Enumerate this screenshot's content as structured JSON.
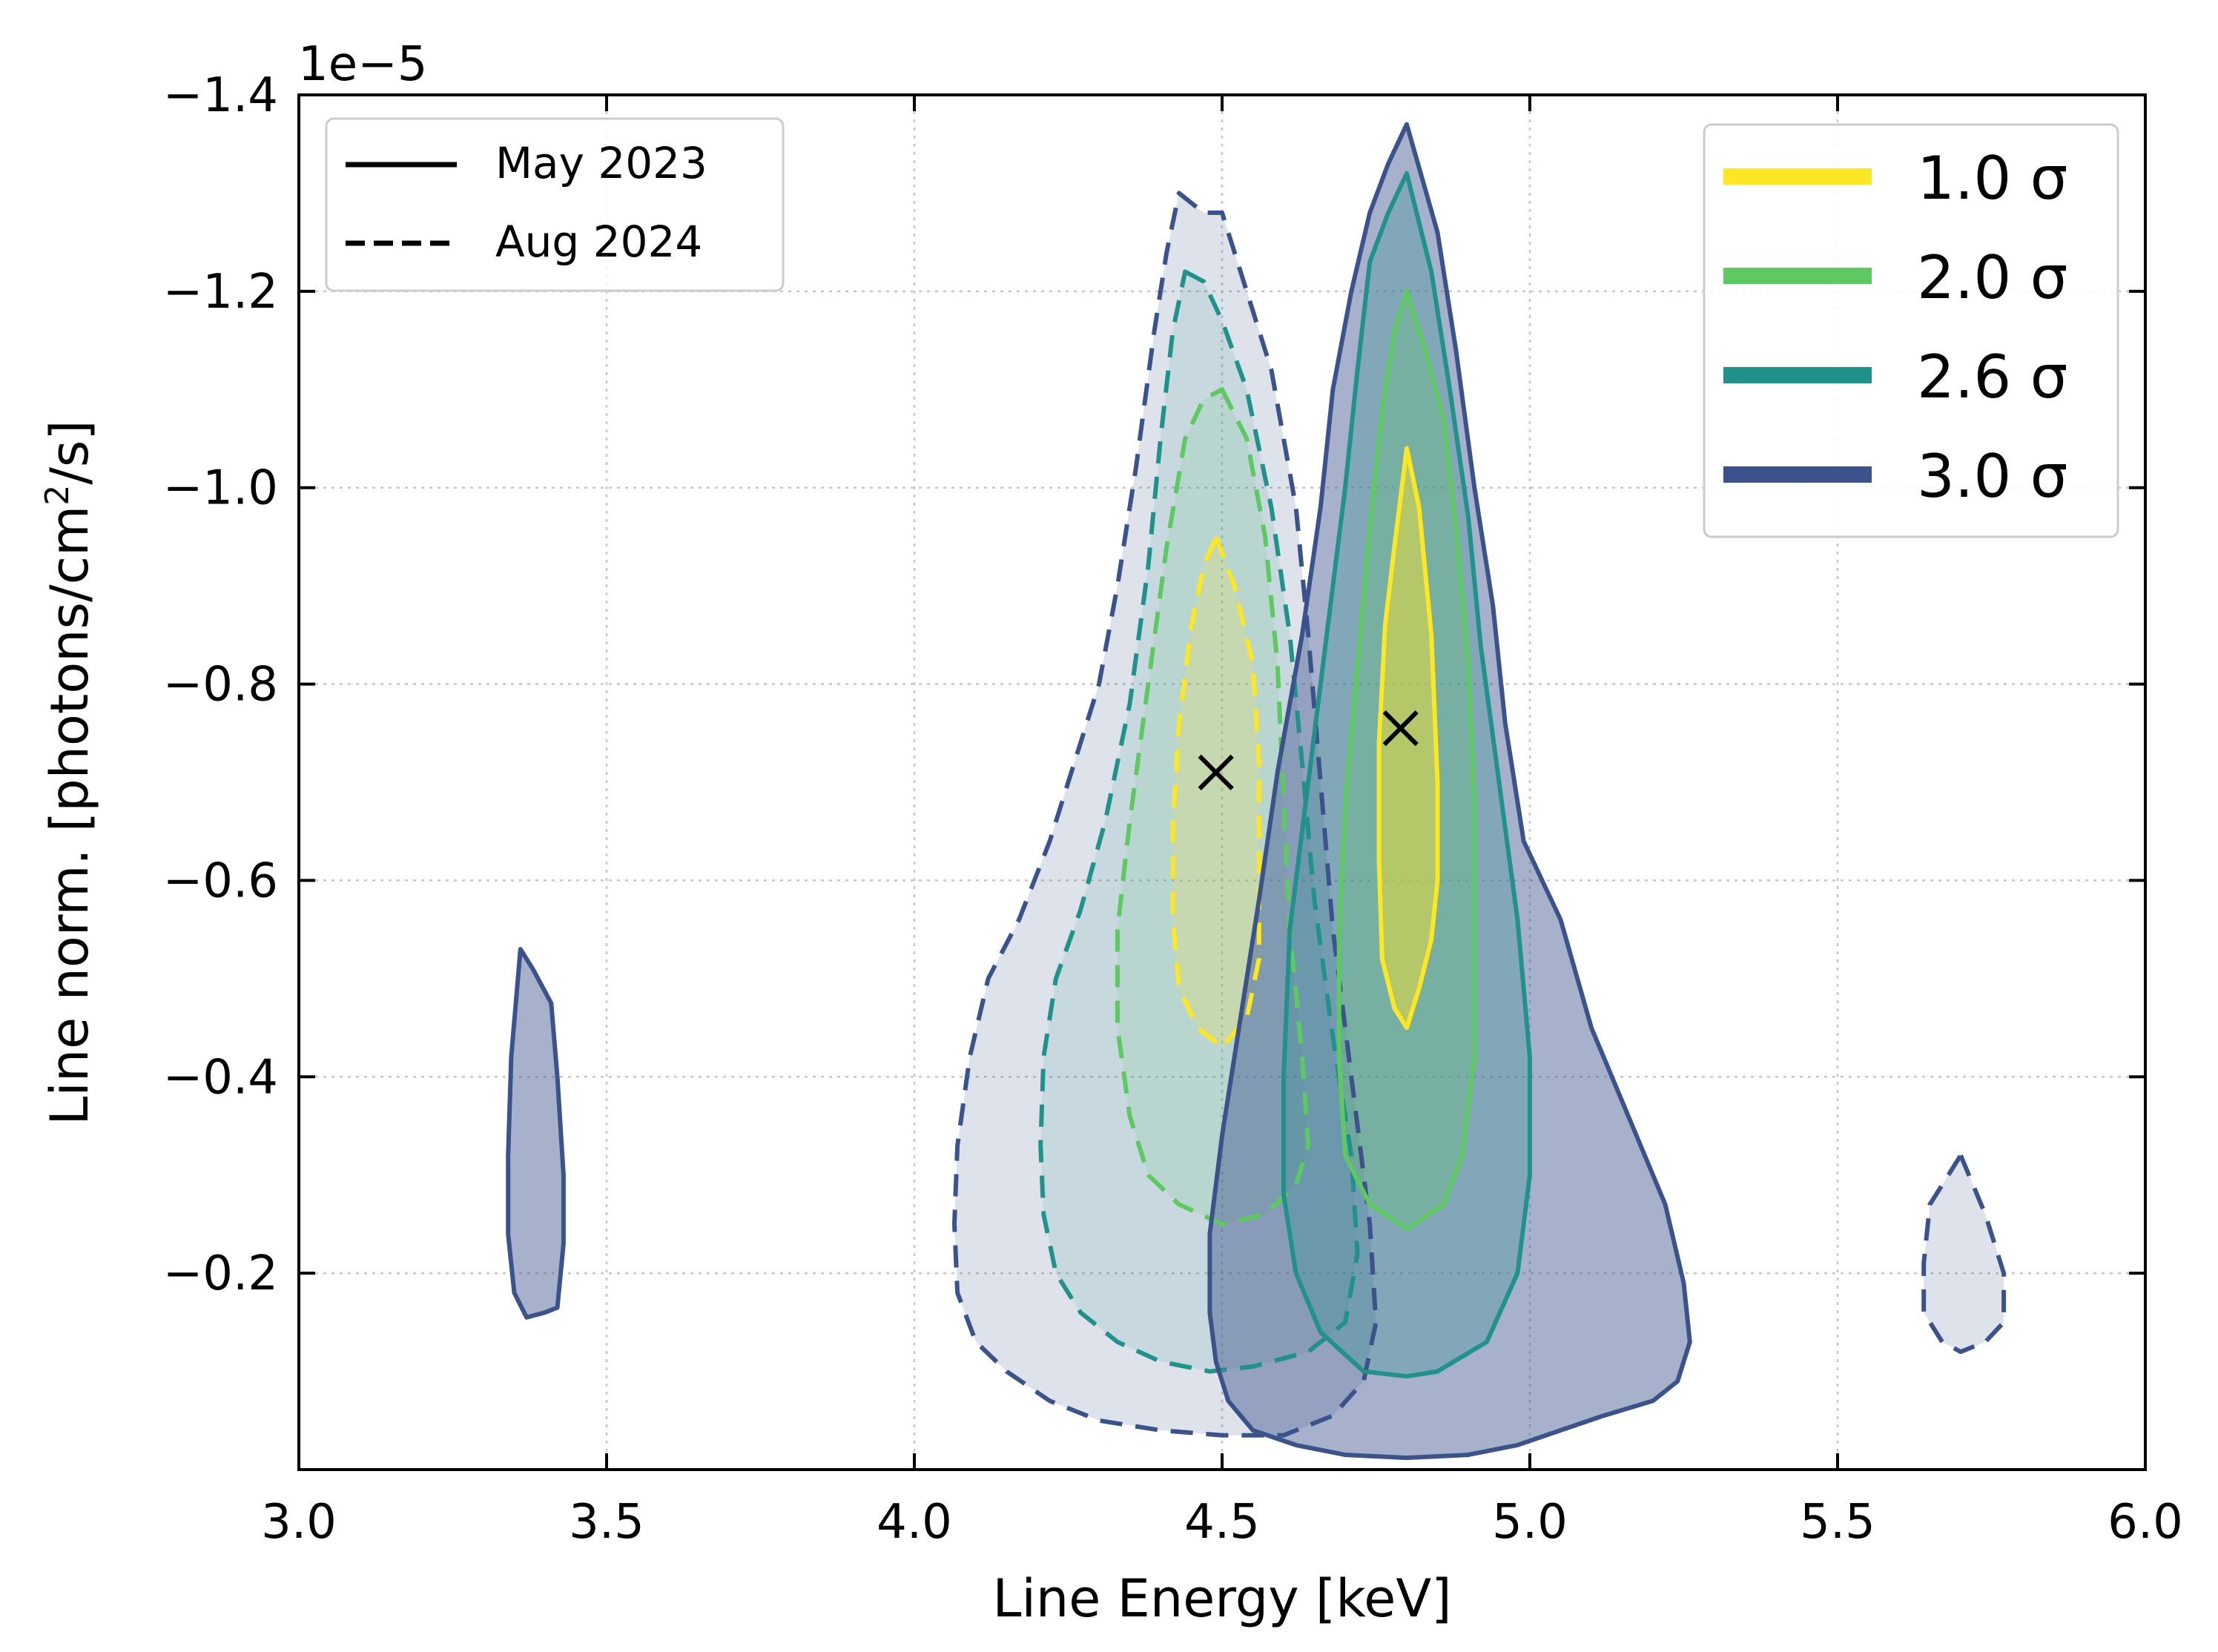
{
  "chart_data": {
    "type": "contour",
    "xlabel": "Line Energy [keV]",
    "ylabel_main": "Line norm. [photons/cm",
    "ylabel_sup": "2",
    "ylabel_end": "/s]",
    "offset_label": "1e−5",
    "xlim": [
      3.0,
      6.0
    ],
    "ylim": [
      0.0,
      -1.4
    ],
    "y_scale": 1e-05,
    "grid": true,
    "x_ticks": [
      3.0,
      3.5,
      4.0,
      4.5,
      5.0,
      5.5,
      6.0
    ],
    "x_tick_labels": [
      "3.0",
      "3.5",
      "4.0",
      "4.5",
      "5.0",
      "5.5",
      "6.0"
    ],
    "y_ticks": [
      -1.4,
      -1.2,
      -1.0,
      -0.8,
      -0.6,
      -0.4,
      -0.2
    ],
    "y_tick_labels": [
      "−1.4",
      "−1.2",
      "−1.0",
      "−0.8",
      "−0.6",
      "−0.4",
      "−0.2"
    ],
    "legend_epochs": [
      {
        "label": "May 2023",
        "style": "solid"
      },
      {
        "label": "Aug 2024",
        "style": "dashed"
      }
    ],
    "legend_levels": [
      {
        "label": "1.0 σ",
        "color": "#fde725"
      },
      {
        "label": "2.0 σ",
        "color": "#5ec962"
      },
      {
        "label": "2.6 σ",
        "color": "#21918c"
      },
      {
        "label": "3.0 σ",
        "color": "#3b528b"
      }
    ],
    "best_fit": [
      {
        "epoch": "Aug 2024",
        "x": 4.49,
        "y": -0.71
      },
      {
        "epoch": "May 2023",
        "x": 4.79,
        "y": -0.755
      }
    ],
    "contours": [
      {
        "epoch": "Aug 2024",
        "level": "3.0 σ",
        "color": "#3b528b",
        "dashed": true,
        "alpha": 0.17,
        "points": [
          [
            4.43,
            -1.3
          ],
          [
            4.47,
            -1.28
          ],
          [
            4.5,
            -1.28
          ],
          [
            4.53,
            -1.22
          ],
          [
            4.58,
            -1.12
          ],
          [
            4.62,
            -0.98
          ],
          [
            4.64,
            -0.85
          ],
          [
            4.66,
            -0.7
          ],
          [
            4.68,
            -0.55
          ],
          [
            4.71,
            -0.4
          ],
          [
            4.74,
            -0.25
          ],
          [
            4.75,
            -0.15
          ],
          [
            4.73,
            -0.09
          ],
          [
            4.68,
            -0.055
          ],
          [
            4.6,
            -0.035
          ],
          [
            4.5,
            -0.035
          ],
          [
            4.4,
            -0.04
          ],
          [
            4.3,
            -0.05
          ],
          [
            4.22,
            -0.07
          ],
          [
            4.15,
            -0.1
          ],
          [
            4.1,
            -0.13
          ],
          [
            4.07,
            -0.18
          ],
          [
            4.065,
            -0.25
          ],
          [
            4.07,
            -0.33
          ],
          [
            4.09,
            -0.42
          ],
          [
            4.12,
            -0.5
          ],
          [
            4.17,
            -0.56
          ],
          [
            4.22,
            -0.64
          ],
          [
            4.26,
            -0.72
          ],
          [
            4.3,
            -0.8
          ],
          [
            4.33,
            -0.9
          ],
          [
            4.36,
            -1.02
          ],
          [
            4.39,
            -1.16
          ],
          [
            4.41,
            -1.24
          ]
        ]
      },
      {
        "epoch": "Aug 2024",
        "level": "3.0 σ",
        "color": "#3b528b",
        "dashed": true,
        "alpha": 0.17,
        "points": [
          [
            5.7,
            -0.32
          ],
          [
            5.74,
            -0.26
          ],
          [
            5.77,
            -0.2
          ],
          [
            5.77,
            -0.15
          ],
          [
            5.74,
            -0.13
          ],
          [
            5.7,
            -0.12
          ],
          [
            5.67,
            -0.13
          ],
          [
            5.64,
            -0.16
          ],
          [
            5.64,
            -0.21
          ],
          [
            5.65,
            -0.27
          ]
        ]
      },
      {
        "epoch": "Aug 2024",
        "level": "2.6 σ",
        "color": "#21918c",
        "dashed": true,
        "alpha": 0.12,
        "points": [
          [
            4.44,
            -1.22
          ],
          [
            4.47,
            -1.21
          ],
          [
            4.5,
            -1.17
          ],
          [
            4.54,
            -1.1
          ],
          [
            4.58,
            -0.98
          ],
          [
            4.61,
            -0.85
          ],
          [
            4.63,
            -0.72
          ],
          [
            4.65,
            -0.58
          ],
          [
            4.68,
            -0.44
          ],
          [
            4.71,
            -0.32
          ],
          [
            4.72,
            -0.22
          ],
          [
            4.7,
            -0.15
          ],
          [
            4.64,
            -0.12
          ],
          [
            4.55,
            -0.105
          ],
          [
            4.48,
            -0.1
          ],
          [
            4.4,
            -0.11
          ],
          [
            4.33,
            -0.13
          ],
          [
            4.27,
            -0.16
          ],
          [
            4.23,
            -0.2
          ],
          [
            4.21,
            -0.26
          ],
          [
            4.205,
            -0.33
          ],
          [
            4.21,
            -0.42
          ],
          [
            4.23,
            -0.5
          ],
          [
            4.27,
            -0.57
          ],
          [
            4.31,
            -0.66
          ],
          [
            4.35,
            -0.78
          ],
          [
            4.38,
            -0.92
          ],
          [
            4.4,
            -1.05
          ],
          [
            4.42,
            -1.16
          ]
        ]
      },
      {
        "epoch": "Aug 2024",
        "level": "2.0 σ",
        "color": "#5ec962",
        "dashed": true,
        "alpha": 0.12,
        "points": [
          [
            4.5,
            -1.1
          ],
          [
            4.54,
            -1.05
          ],
          [
            4.57,
            -0.95
          ],
          [
            4.59,
            -0.82
          ],
          [
            4.6,
            -0.68
          ],
          [
            4.61,
            -0.55
          ],
          [
            4.63,
            -0.42
          ],
          [
            4.64,
            -0.33
          ],
          [
            4.62,
            -0.29
          ],
          [
            4.57,
            -0.26
          ],
          [
            4.5,
            -0.25
          ],
          [
            4.43,
            -0.27
          ],
          [
            4.38,
            -0.3
          ],
          [
            4.35,
            -0.36
          ],
          [
            4.33,
            -0.45
          ],
          [
            4.33,
            -0.55
          ],
          [
            4.35,
            -0.66
          ],
          [
            4.38,
            -0.8
          ],
          [
            4.41,
            -0.94
          ],
          [
            4.44,
            -1.05
          ],
          [
            4.47,
            -1.09
          ]
        ]
      },
      {
        "epoch": "Aug 2024",
        "level": "1.0 σ",
        "color": "#fde725",
        "dashed": true,
        "alpha": 0.18,
        "points": [
          [
            4.49,
            -0.95
          ],
          [
            4.52,
            -0.9
          ],
          [
            4.55,
            -0.82
          ],
          [
            4.56,
            -0.72
          ],
          [
            4.56,
            -0.62
          ],
          [
            4.56,
            -0.52
          ],
          [
            4.54,
            -0.46
          ],
          [
            4.5,
            -0.43
          ],
          [
            4.46,
            -0.45
          ],
          [
            4.43,
            -0.49
          ],
          [
            4.42,
            -0.56
          ],
          [
            4.42,
            -0.66
          ],
          [
            4.43,
            -0.76
          ],
          [
            4.45,
            -0.86
          ],
          [
            4.47,
            -0.92
          ]
        ]
      },
      {
        "epoch": "May 2023",
        "level": "3.0 σ",
        "color": "#3b528b",
        "dashed": false,
        "alpha": 0.45,
        "points": [
          [
            4.8,
            -1.37
          ],
          [
            4.85,
            -1.26
          ],
          [
            4.88,
            -1.14
          ],
          [
            4.91,
            -1.0
          ],
          [
            4.94,
            -0.88
          ],
          [
            4.96,
            -0.76
          ],
          [
            4.99,
            -0.64
          ],
          [
            5.05,
            -0.56
          ],
          [
            5.1,
            -0.45
          ],
          [
            5.14,
            -0.39
          ],
          [
            5.18,
            -0.33
          ],
          [
            5.22,
            -0.27
          ],
          [
            5.25,
            -0.19
          ],
          [
            5.26,
            -0.13
          ],
          [
            5.24,
            -0.09
          ],
          [
            5.2,
            -0.07
          ],
          [
            5.12,
            -0.055
          ],
          [
            5.05,
            -0.04
          ],
          [
            4.98,
            -0.025
          ],
          [
            4.9,
            -0.015
          ],
          [
            4.8,
            -0.012
          ],
          [
            4.7,
            -0.015
          ],
          [
            4.62,
            -0.025
          ],
          [
            4.55,
            -0.04
          ],
          [
            4.51,
            -0.07
          ],
          [
            4.49,
            -0.11
          ],
          [
            4.48,
            -0.16
          ],
          [
            4.48,
            -0.24
          ],
          [
            4.5,
            -0.34
          ],
          [
            4.53,
            -0.46
          ],
          [
            4.56,
            -0.58
          ],
          [
            4.59,
            -0.71
          ],
          [
            4.63,
            -0.85
          ],
          [
            4.66,
            -0.98
          ],
          [
            4.68,
            -1.1
          ],
          [
            4.71,
            -1.2
          ],
          [
            4.74,
            -1.28
          ],
          [
            4.77,
            -1.33
          ]
        ]
      },
      {
        "epoch": "May 2023",
        "level": "3.0 σ",
        "color": "#3b528b",
        "dashed": false,
        "alpha": 0.45,
        "points": [
          [
            3.36,
            -0.53
          ],
          [
            3.38,
            -0.51
          ],
          [
            3.41,
            -0.475
          ],
          [
            3.42,
            -0.4
          ],
          [
            3.43,
            -0.3
          ],
          [
            3.43,
            -0.23
          ],
          [
            3.42,
            -0.165
          ],
          [
            3.4,
            -0.16
          ],
          [
            3.37,
            -0.155
          ],
          [
            3.35,
            -0.18
          ],
          [
            3.34,
            -0.24
          ],
          [
            3.34,
            -0.32
          ],
          [
            3.345,
            -0.42
          ]
        ]
      },
      {
        "epoch": "May 2023",
        "level": "2.6 σ",
        "color": "#21918c",
        "dashed": false,
        "alpha": 0.28,
        "points": [
          [
            4.8,
            -1.32
          ],
          [
            4.84,
            -1.22
          ],
          [
            4.87,
            -1.1
          ],
          [
            4.9,
            -0.97
          ],
          [
            4.92,
            -0.84
          ],
          [
            4.95,
            -0.7
          ],
          [
            4.98,
            -0.56
          ],
          [
            5.0,
            -0.42
          ],
          [
            5.0,
            -0.3
          ],
          [
            4.98,
            -0.2
          ],
          [
            4.93,
            -0.13
          ],
          [
            4.85,
            -0.1
          ],
          [
            4.8,
            -0.095
          ],
          [
            4.73,
            -0.1
          ],
          [
            4.66,
            -0.14
          ],
          [
            4.62,
            -0.2
          ],
          [
            4.6,
            -0.28
          ],
          [
            4.6,
            -0.4
          ],
          [
            4.61,
            -0.55
          ],
          [
            4.64,
            -0.7
          ],
          [
            4.67,
            -0.85
          ],
          [
            4.7,
            -1.0
          ],
          [
            4.72,
            -1.12
          ],
          [
            4.74,
            -1.23
          ],
          [
            4.77,
            -1.28
          ]
        ]
      },
      {
        "epoch": "May 2023",
        "level": "2.0 σ",
        "color": "#5ec962",
        "dashed": false,
        "alpha": 0.25,
        "points": [
          [
            4.8,
            -1.2
          ],
          [
            4.83,
            -1.14
          ],
          [
            4.86,
            -1.07
          ],
          [
            4.88,
            -0.96
          ],
          [
            4.9,
            -0.82
          ],
          [
            4.91,
            -0.68
          ],
          [
            4.91,
            -0.55
          ],
          [
            4.91,
            -0.42
          ],
          [
            4.89,
            -0.32
          ],
          [
            4.86,
            -0.27
          ],
          [
            4.8,
            -0.245
          ],
          [
            4.74,
            -0.27
          ],
          [
            4.7,
            -0.32
          ],
          [
            4.69,
            -0.42
          ],
          [
            4.69,
            -0.55
          ],
          [
            4.7,
            -0.68
          ],
          [
            4.72,
            -0.82
          ],
          [
            4.74,
            -0.96
          ],
          [
            4.76,
            -1.08
          ],
          [
            4.78,
            -1.16
          ]
        ]
      },
      {
        "epoch": "May 2023",
        "level": "1.0 σ",
        "color": "#fde725",
        "dashed": false,
        "alpha": 0.45,
        "points": [
          [
            4.8,
            -1.04
          ],
          [
            4.82,
            -0.98
          ],
          [
            4.84,
            -0.85
          ],
          [
            4.85,
            -0.7
          ],
          [
            4.85,
            -0.6
          ],
          [
            4.84,
            -0.54
          ],
          [
            4.82,
            -0.49
          ],
          [
            4.8,
            -0.45
          ],
          [
            4.78,
            -0.47
          ],
          [
            4.76,
            -0.52
          ],
          [
            4.755,
            -0.62
          ],
          [
            4.755,
            -0.74
          ],
          [
            4.765,
            -0.86
          ],
          [
            4.78,
            -0.94
          ]
        ]
      }
    ]
  }
}
